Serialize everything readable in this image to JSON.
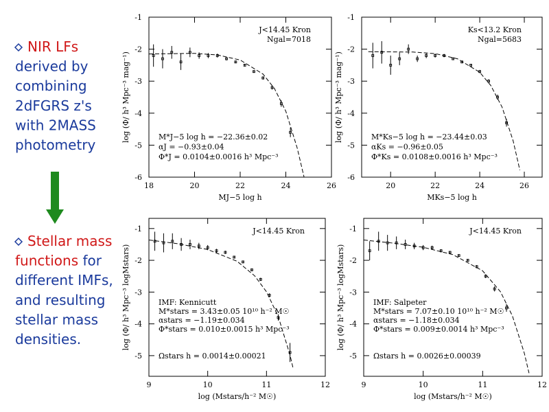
{
  "slide": {
    "blocks": [
      {
        "lines": [
          [
            {
              "text": "NIR LFs",
              "color": "#d01818"
            }
          ],
          [
            {
              "text": "derived by",
              "color": "#1a3a9c"
            }
          ],
          [
            {
              "text": "combining",
              "color": "#1a3a9c"
            }
          ],
          [
            {
              "text": "2dFGRS z's",
              "color": "#1a3a9c"
            }
          ],
          [
            {
              "text": "with 2MASS",
              "color": "#1a3a9c"
            }
          ],
          [
            {
              "text": "photometry",
              "color": "#1a3a9c"
            }
          ]
        ]
      },
      {
        "lines": [
          [
            {
              "text": "Stellar mass",
              "color": "#d01818"
            }
          ],
          [
            {
              "text": "functions",
              "color": "#d01818"
            },
            {
              "text": " for",
              "color": "#1a3a9c"
            }
          ],
          [
            {
              "text": "different IMFs,",
              "color": "#1a3a9c"
            }
          ],
          [
            {
              "text": "and resulting",
              "color": "#1a3a9c"
            }
          ],
          [
            {
              "text": "stellar mass",
              "color": "#1a3a9c"
            }
          ],
          [
            {
              "text": "densities.",
              "color": "#1a3a9c"
            }
          ]
        ]
      }
    ]
  },
  "chart_data": [
    {
      "type": "scatter",
      "xlabel": "MJ−5 log h",
      "ylabel": "log (Φ/ h³ Mpc⁻³ mag⁻¹)",
      "xlim": [
        18,
        26
      ],
      "ylim": [
        -6,
        -1
      ],
      "xticks": [
        18,
        20,
        22,
        24,
        26
      ],
      "yticks": [
        -6,
        -5,
        -4,
        -3,
        -2,
        -1
      ],
      "labels": [
        "J<14.45 Kron",
        "Ngal=7018"
      ],
      "annotations": [
        "M*J−5 log h = −22.36±0.02",
        "αJ = −0.93±0.04",
        "Φ*J = 0.0104±0.0016 h³ Mpc⁻³"
      ],
      "color": "#000000",
      "points": {
        "x": [
          18.2,
          18.6,
          19.0,
          19.4,
          19.8,
          20.2,
          20.6,
          21.0,
          21.4,
          21.8,
          22.2,
          22.6,
          23.0,
          23.4,
          23.8,
          24.2
        ],
        "y": [
          -2.2,
          -2.3,
          -2.1,
          -2.4,
          -2.1,
          -2.2,
          -2.2,
          -2.2,
          -2.3,
          -2.4,
          -2.5,
          -2.7,
          -2.9,
          -3.2,
          -3.7,
          -4.6
        ],
        "errors": [
          0.35,
          0.3,
          0.2,
          0.25,
          0.15,
          0.1,
          0.08,
          0.06,
          0.05,
          0.04,
          0.04,
          0.04,
          0.05,
          0.06,
          0.1,
          0.15
        ]
      },
      "fit": {
        "x": [
          18,
          20,
          21,
          22,
          23,
          23.5,
          24,
          24.5,
          24.8
        ],
        "y": [
          -2.15,
          -2.13,
          -2.18,
          -2.34,
          -2.78,
          -3.23,
          -3.94,
          -5.09,
          -6.0
        ]
      }
    },
    {
      "type": "scatter",
      "xlabel": "MKs−5 log h",
      "ylabel": "log (Φ/ h³ Mpc⁻³ mag⁻¹)",
      "xlim": [
        18.7,
        26.8
      ],
      "ylim": [
        -6,
        -1
      ],
      "xticks": [
        20,
        22,
        24,
        26
      ],
      "yticks": [
        -6,
        -5,
        -4,
        -3,
        -2,
        -1
      ],
      "labels": [
        "Ks<13.2 Kron",
        "Ngal=5683"
      ],
      "annotations": [
        "M*Ks−5 log h = −23.44±0.03",
        "αKs = −0.96±0.05",
        "Φ*Ks = 0.0108±0.0016 h³ Mpc⁻³"
      ],
      "color": "#000000",
      "points": {
        "x": [
          19.2,
          19.6,
          20.0,
          20.4,
          20.8,
          21.2,
          21.6,
          22.0,
          22.4,
          22.8,
          23.2,
          23.6,
          24.0,
          24.4,
          24.8,
          25.2
        ],
        "y": [
          -2.2,
          -2.1,
          -2.5,
          -2.3,
          -2.0,
          -2.3,
          -2.2,
          -2.2,
          -2.2,
          -2.3,
          -2.4,
          -2.5,
          -2.7,
          -3.0,
          -3.5,
          -4.3
        ],
        "errors": [
          0.4,
          0.35,
          0.3,
          0.2,
          0.15,
          0.1,
          0.08,
          0.06,
          0.05,
          0.04,
          0.04,
          0.04,
          0.05,
          0.06,
          0.08,
          0.12
        ]
      },
      "fit": {
        "x": [
          19,
          21,
          22,
          23,
          24,
          24.5,
          25,
          25.5,
          25.8
        ],
        "y": [
          -2.08,
          -2.09,
          -2.14,
          -2.3,
          -2.72,
          -3.14,
          -3.81,
          -4.87,
          -5.78
        ]
      }
    },
    {
      "type": "scatter",
      "xlabel": "log (Mstars/h⁻² M☉)",
      "ylabel": "log (Φ/ h³ Mpc⁻³ logMstars)",
      "xlim": [
        9,
        12
      ],
      "ylim": [
        -5.65,
        -0.68
      ],
      "xticks": [
        9,
        10,
        11,
        12
      ],
      "yticks": [
        -5,
        -4,
        -3,
        -2,
        -1
      ],
      "labels": [
        "J<14.45 Kron"
      ],
      "annotations": [
        "IMF: Kennicutt",
        "M*stars = 3.43±0.05 10¹⁰ h⁻² M☉",
        "αstars = −1.19±0.034",
        "Φ*stars = 0.010±0.0015 h³ Mpc⁻³"
      ],
      "note": "Ωstars h = 0.0014±0.00021",
      "color": "#000000",
      "points": {
        "x": [
          9.1,
          9.25,
          9.4,
          9.55,
          9.7,
          9.85,
          10.0,
          10.15,
          10.3,
          10.45,
          10.6,
          10.75,
          10.9,
          11.05,
          11.2,
          11.4
        ],
        "y": [
          -1.4,
          -1.45,
          -1.4,
          -1.5,
          -1.5,
          -1.55,
          -1.6,
          -1.7,
          -1.75,
          -1.9,
          -2.05,
          -2.3,
          -2.6,
          -3.1,
          -3.8,
          -4.9
        ],
        "errors": [
          0.3,
          0.3,
          0.25,
          0.2,
          0.15,
          0.1,
          0.08,
          0.06,
          0.05,
          0.04,
          0.04,
          0.04,
          0.05,
          0.06,
          0.1,
          0.3
        ]
      },
      "fit": {
        "x": [
          9,
          9.5,
          10,
          10.5,
          10.8,
          11,
          11.2,
          11.4,
          11.45
        ],
        "y": [
          -1.36,
          -1.48,
          -1.66,
          -2.03,
          -2.49,
          -2.99,
          -3.77,
          -4.98,
          -5.38
        ]
      }
    },
    {
      "type": "scatter",
      "xlabel": "log (Mstars/h⁻² M☉)",
      "ylabel": "log (Φ/ h³ Mpc⁻³ logMstars)",
      "xlim": [
        9,
        12
      ],
      "ylim": [
        -5.65,
        -0.68
      ],
      "xticks": [
        9,
        10,
        11,
        12
      ],
      "yticks": [
        -5,
        -4,
        -3,
        -2,
        -1
      ],
      "labels": [
        "J<14.45 Kron"
      ],
      "annotations": [
        "IMF: Salpeter",
        "M*stars = 7.07±0.10 10¹⁰ h⁻² M☉",
        "αstars = −1.18±0.034",
        "Φ*stars = 0.009±0.0014 h³ Mpc⁻³"
      ],
      "note": "Ωstars h = 0.0026±0.00039",
      "color": "#000000",
      "points": {
        "x": [
          9.1,
          9.25,
          9.4,
          9.55,
          9.7,
          9.85,
          10.0,
          10.15,
          10.3,
          10.45,
          10.6,
          10.75,
          10.9,
          11.05,
          11.2,
          11.4
        ],
        "y": [
          -1.7,
          -1.4,
          -1.45,
          -1.45,
          -1.5,
          -1.55,
          -1.6,
          -1.6,
          -1.7,
          -1.75,
          -1.85,
          -2.0,
          -2.2,
          -2.5,
          -2.9,
          -3.5
        ],
        "errors": [
          0.3,
          0.3,
          0.25,
          0.2,
          0.15,
          0.1,
          0.08,
          0.06,
          0.05,
          0.04,
          0.04,
          0.04,
          0.05,
          0.06,
          0.08,
          0.12
        ]
      },
      "fit": {
        "x": [
          9,
          9.5,
          10,
          10.5,
          11,
          11.3,
          11.5,
          11.7,
          11.78
        ],
        "y": [
          -1.36,
          -1.46,
          -1.59,
          -1.82,
          -2.33,
          -2.99,
          -3.75,
          -4.92,
          -5.55
        ]
      }
    }
  ]
}
